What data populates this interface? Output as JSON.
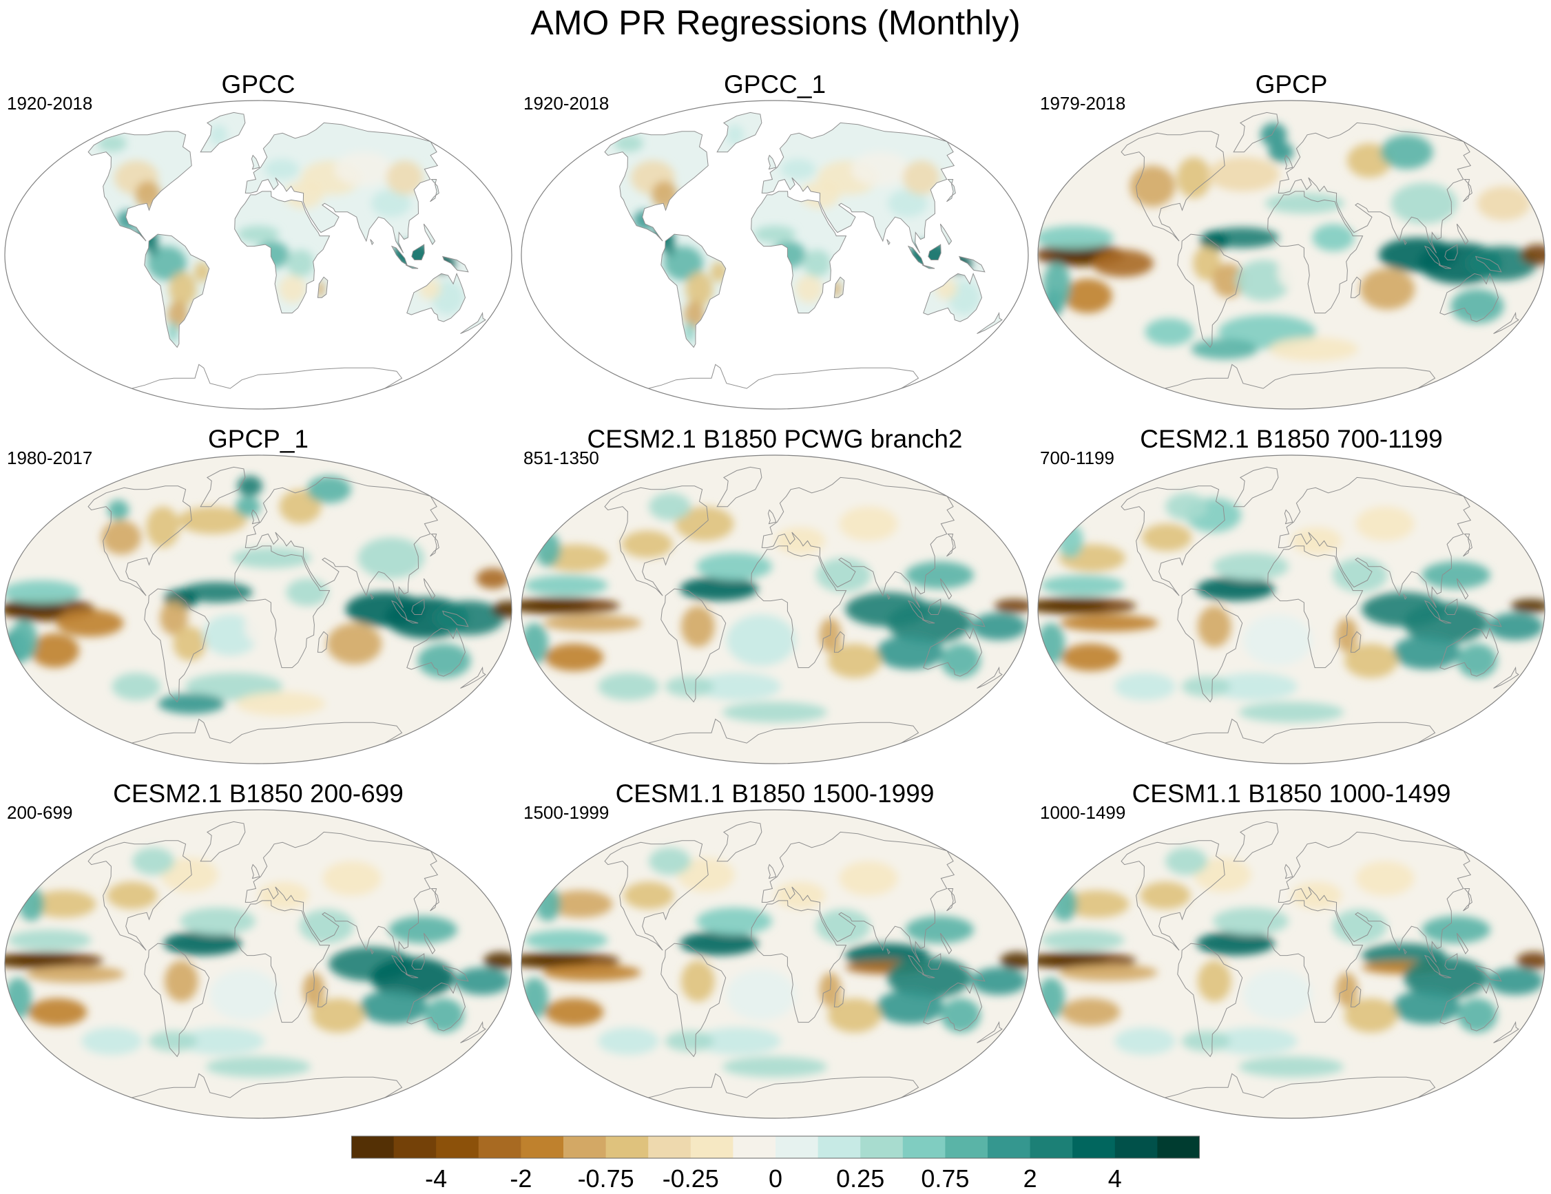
{
  "title": "AMO PR Regressions (Monthly)",
  "panels": [
    {
      "id": "gpcc",
      "title": "GPCC",
      "period": "1920-2018",
      "coverage": "land"
    },
    {
      "id": "gpcc1",
      "title": "GPCC_1",
      "period": "1920-2018",
      "coverage": "land"
    },
    {
      "id": "gpcp",
      "title": "GPCP",
      "period": "1979-2018",
      "coverage": "global"
    },
    {
      "id": "gpcp1",
      "title": "GPCP_1",
      "period": "1980-2017",
      "coverage": "global"
    },
    {
      "id": "cesm21a",
      "title": "CESM2.1 B1850 PCWG branch2",
      "period": "851-1350",
      "coverage": "global"
    },
    {
      "id": "cesm21b",
      "title": "CESM2.1 B1850 700-1199",
      "period": "700-1199",
      "coverage": "global"
    },
    {
      "id": "cesm21c",
      "title": "CESM2.1 B1850 200-699",
      "period": "200-699",
      "coverage": "global"
    },
    {
      "id": "cesm11a",
      "title": "CESM1.1 B1850 1500-1999",
      "period": "1500-1999",
      "coverage": "global"
    },
    {
      "id": "cesm11b",
      "title": "CESM1.1 B1850 1000-1499",
      "period": "1000-1499",
      "coverage": "global"
    }
  ],
  "colorbar": {
    "labels": [
      "-4",
      "-2",
      "-0.75",
      "-0.25",
      "0",
      "0.25",
      "0.75",
      "2",
      "4"
    ],
    "colors": [
      "#543005",
      "#744108",
      "#8c510a",
      "#a86a22",
      "#bf812d",
      "#d3a865",
      "#dfc27d",
      "#eed9ae",
      "#f6e8c3",
      "#f5f2ea",
      "#e6f2ef",
      "#c7eae5",
      "#a8dccf",
      "#80cdc1",
      "#5ab4a7",
      "#35978f",
      "#1c8076",
      "#01665e",
      "#01514a",
      "#003c30"
    ]
  },
  "colors": {
    "coast": "#8f8f8f",
    "land_ocean_edge": "#808080"
  }
}
